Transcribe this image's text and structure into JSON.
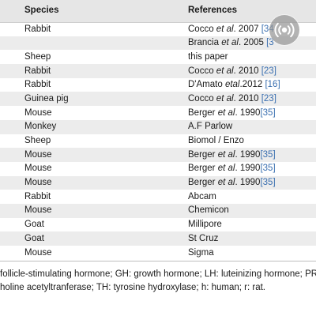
{
  "table": {
    "headers": {
      "species": "Species",
      "references": "References"
    },
    "rows": [
      {
        "species": "Rabbit",
        "ref_text": "Cocco ",
        "ref_italic": "et al",
        "ref_tail": ". 2007 ",
        "citation": "[34"
      },
      {
        "species": "",
        "ref_text": "Brancia ",
        "ref_italic": "et al",
        "ref_tail": ". 2005 ",
        "citation": "[3"
      },
      {
        "species": "Sheep",
        "ref_text": "this paper",
        "ref_italic": "",
        "ref_tail": "",
        "citation": ""
      },
      {
        "species": "Rabbit",
        "ref_text": "Cocco ",
        "ref_italic": "et al",
        "ref_tail": ". 2010 ",
        "citation": "[23]"
      },
      {
        "species": "Rabbit",
        "ref_text": "D'Amato ",
        "ref_italic": "etal",
        "ref_tail": ".2012 ",
        "citation": "[16]"
      },
      {
        "species": "Guinea pig",
        "ref_text": "Cocco ",
        "ref_italic": "et al",
        "ref_tail": ". 2010 ",
        "citation": "[23]"
      },
      {
        "species": "Mouse",
        "ref_text": "Berger ",
        "ref_italic": "et al",
        "ref_tail": ". 1990",
        "citation": "[35]"
      },
      {
        "species": "Monkey",
        "ref_text": "A.F Parlow",
        "ref_italic": "",
        "ref_tail": "",
        "citation": ""
      },
      {
        "species": "Sheep",
        "ref_text": "Biomol / Enzo",
        "ref_italic": "",
        "ref_tail": "",
        "citation": ""
      },
      {
        "species": "Mouse",
        "ref_text": "Berger ",
        "ref_italic": "et al",
        "ref_tail": ". 1990",
        "citation": "[35]"
      },
      {
        "species": "Mouse",
        "ref_text": "Berger ",
        "ref_italic": "et al",
        "ref_tail": ". 1990",
        "citation": "[35]"
      },
      {
        "species": "Mouse",
        "ref_text": "Berger ",
        "ref_italic": "et al",
        "ref_tail": ". 1990",
        "citation": "[35]"
      },
      {
        "species": "Rabbit",
        "ref_text": "Abcam",
        "ref_italic": "",
        "ref_tail": "",
        "citation": ""
      },
      {
        "species": "Mouse",
        "ref_text": "Chemicon",
        "ref_italic": "",
        "ref_tail": "",
        "citation": ""
      },
      {
        "species": "Goat",
        "ref_text": "Millipore",
        "ref_italic": "",
        "ref_tail": "",
        "citation": ""
      },
      {
        "species": "Goat",
        "ref_text": "St Cruz",
        "ref_italic": "",
        "ref_tail": "",
        "citation": ""
      },
      {
        "species": "Mouse",
        "ref_text": "Sigma",
        "ref_italic": "",
        "ref_tail": "",
        "citation": ""
      }
    ]
  },
  "footnote": {
    "line1": "follicle-stimulating hormone; GH: growth hormone; LH: luteinizing hormone; PRL",
    "line2": "holine acetyltranferase; TH: tyrosine hydroxylase; h: human; r: rat."
  },
  "overlay": {
    "icon": "podcast-icon"
  },
  "colors": {
    "header_bg": "#e6e6e6",
    "row_shade": "#ececec",
    "citation": "#3a6fb0",
    "overlay_bg": "#969696"
  }
}
